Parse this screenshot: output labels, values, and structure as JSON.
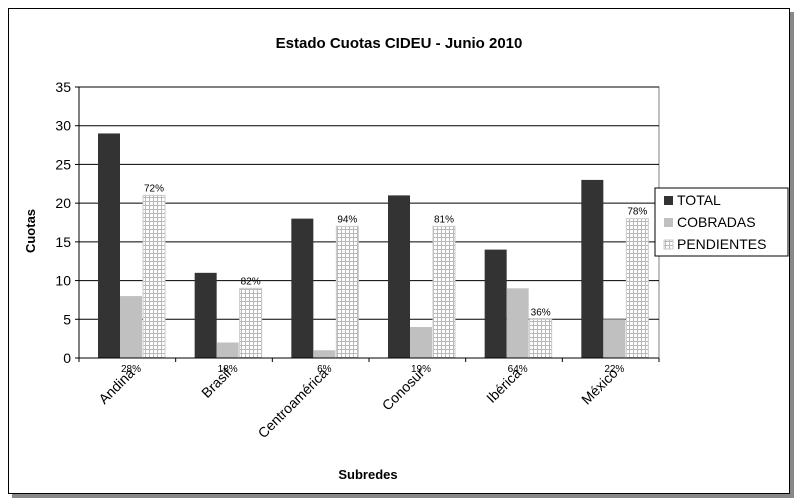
{
  "chart_data": {
    "type": "bar",
    "title": "Estado Cuotas CIDEU - Junio 2010",
    "xlabel": "Subredes",
    "ylabel": "Cuotas",
    "ylim": [
      0,
      35
    ],
    "yticks": [
      0,
      5,
      10,
      15,
      20,
      25,
      30,
      35
    ],
    "grid": true,
    "legend_position": "right",
    "categories": [
      "Andina",
      "Brasil",
      "Centroamérica",
      "Conosur",
      "Ibérica",
      "México"
    ],
    "series": [
      {
        "name": "TOTAL",
        "values": [
          29,
          11,
          18,
          21,
          14,
          23
        ],
        "color": "#333333"
      },
      {
        "name": "COBRADAS",
        "values": [
          8,
          2,
          1,
          4,
          9,
          5
        ],
        "color": "#c0c0c0"
      },
      {
        "name": "PENDIENTES",
        "values": [
          21,
          9,
          17,
          17,
          5,
          18
        ],
        "color": "#ffffff"
      }
    ],
    "annotations": {
      "COBRADAS": [
        "28%",
        "18%",
        "6%",
        "19%",
        "64%",
        "22%"
      ],
      "PENDIENTES": [
        "72%",
        "82%",
        "94%",
        "81%",
        "36%",
        "78%"
      ]
    }
  }
}
